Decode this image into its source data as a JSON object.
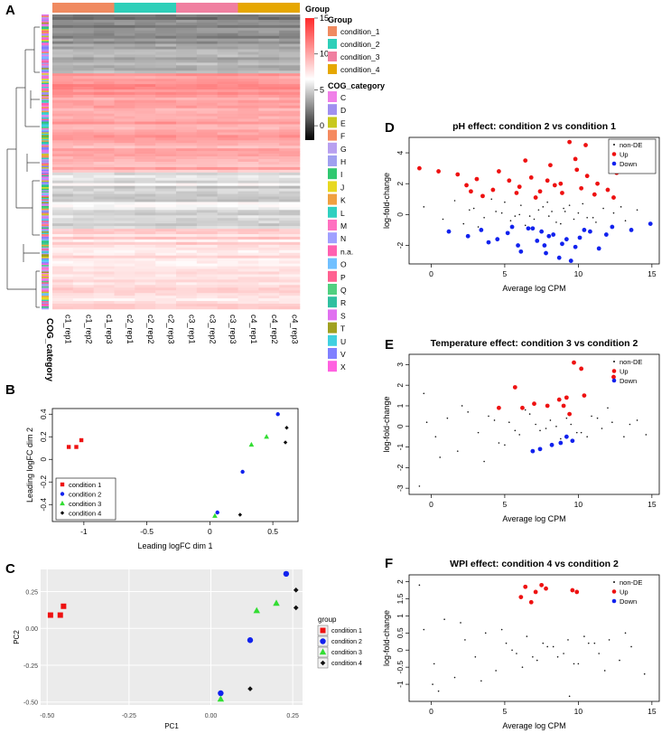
{
  "panels": {
    "a": "A",
    "b": "B",
    "c": "C",
    "d": "D",
    "e": "E",
    "f": "F"
  },
  "colors": {
    "c1": "#f08a60",
    "c2": "#2ecfb9",
    "c3": "#f07fa0",
    "c4": "#e6a700",
    "up": "#ee1111",
    "down": "#1122ee",
    "nonde": "#111111"
  },
  "heatmap": {
    "sample_labels": [
      "c1_rep1",
      "c1_rep2",
      "c1_rep3",
      "c2_rep1",
      "c2_rep2",
      "c2_rep3",
      "c3_rep1",
      "c3_rep2",
      "c3_rep3",
      "c4_rep1",
      "c4_rep2",
      "c4_rep3"
    ],
    "cog_axis_label": "COG_category",
    "scale_ticks": [
      "15",
      "10",
      "5",
      "0"
    ],
    "legend_group_title": "Group",
    "legend_group_title_2": "Group",
    "group_labels": [
      "condition_1",
      "condition_2",
      "condition_3",
      "condition_4"
    ],
    "legend_cog_title": "COG_category",
    "cog_categories": [
      "C",
      "D",
      "E",
      "F",
      "G",
      "H",
      "I",
      "J",
      "K",
      "L",
      "M",
      "N",
      "n.a.",
      "O",
      "P",
      "Q",
      "R",
      "S",
      "T",
      "U",
      "V",
      "X"
    ],
    "cog_colors": [
      "#f080e8",
      "#a090f0",
      "#c8c81e",
      "#f58a60",
      "#b8a0f0",
      "#a0a0f0",
      "#30c870",
      "#e8d820",
      "#f0a040",
      "#30d0c0",
      "#ff70c0",
      "#a0a0ff",
      "#ff60b0",
      "#70c0ff",
      "#ff6090",
      "#50d080",
      "#30c0a0",
      "#e070f0",
      "#a0a020",
      "#40d0e0",
      "#8080ff",
      "#ff60e0"
    ]
  },
  "chart_data": [
    {
      "id": "B",
      "type": "scatter",
      "title": "",
      "xlabel": "Leading logFC dim 1",
      "ylabel": "Leading logFC dim 2",
      "xlim": [
        -1.25,
        0.7
      ],
      "ylim": [
        -0.55,
        0.45
      ],
      "xticks": [
        -1.0,
        -0.5,
        0.0,
        0.5
      ],
      "yticks": [
        -0.4,
        -0.2,
        0.0,
        0.2,
        0.4
      ],
      "legend": [
        "condition 1",
        "condition 2",
        "condition 3",
        "condition 4"
      ],
      "series": [
        {
          "name": "condition 1",
          "x": [
            -1.12,
            -1.06,
            -1.02
          ],
          "y": [
            0.11,
            0.11,
            0.17
          ]
        },
        {
          "name": "condition 2",
          "x": [
            0.06,
            0.26,
            0.54
          ],
          "y": [
            -0.47,
            -0.11,
            0.4
          ]
        },
        {
          "name": "condition 3",
          "x": [
            0.04,
            0.33,
            0.45
          ],
          "y": [
            -0.5,
            0.13,
            0.2
          ]
        },
        {
          "name": "condition 4",
          "x": [
            0.24,
            0.6,
            0.61
          ],
          "y": [
            -0.49,
            0.15,
            0.28
          ]
        }
      ]
    },
    {
      "id": "C",
      "type": "scatter",
      "title": "",
      "xlabel": "PC1",
      "ylabel": "PC2",
      "xlim": [
        -0.52,
        0.28
      ],
      "ylim": [
        -0.52,
        0.4
      ],
      "xticks": [
        "-0.50",
        "-0.25",
        "0.00",
        "0.25"
      ],
      "xtick_values": [
        -0.5,
        -0.25,
        0.0,
        0.25
      ],
      "yticks": [
        "0.25",
        "0.00",
        "-0.25",
        "-0.50"
      ],
      "ytick_values": [
        0.25,
        0.0,
        -0.25,
        -0.5
      ],
      "legend_title": "group",
      "legend": [
        "condition 1",
        "condition 2",
        "condition 3",
        "condition 4"
      ],
      "series": [
        {
          "name": "condition 1",
          "x": [
            -0.49,
            -0.46,
            -0.45
          ],
          "y": [
            0.09,
            0.09,
            0.15
          ]
        },
        {
          "name": "condition 2",
          "x": [
            0.03,
            0.12,
            0.23
          ],
          "y": [
            -0.44,
            -0.08,
            0.37
          ]
        },
        {
          "name": "condition 3",
          "x": [
            0.03,
            0.14,
            0.2
          ],
          "y": [
            -0.48,
            0.12,
            0.17
          ]
        },
        {
          "name": "condition 4",
          "x": [
            0.12,
            0.26,
            0.26
          ],
          "y": [
            -0.41,
            0.14,
            0.26
          ]
        }
      ]
    },
    {
      "id": "D",
      "type": "scatter",
      "title": "pH effect: condition 2 vs condition 1",
      "xlabel": "Average log CPM",
      "ylabel": "log-fold-change",
      "xlim": [
        -1.5,
        15.5
      ],
      "ylim": [
        -3.2,
        5.0
      ],
      "xticks": [
        0,
        5,
        10,
        15
      ],
      "yticks": [
        -2,
        0,
        2,
        4
      ],
      "legend": [
        "non-DE",
        "Up",
        "Down"
      ],
      "series": [
        {
          "name": "Up",
          "x": [
            -0.8,
            0.5,
            1.8,
            2.4,
            3.1,
            4.2,
            5.3,
            6.0,
            6.8,
            7.4,
            8.1,
            8.8,
            9.4,
            9.8,
            10.2,
            10.6,
            11.3,
            12.0,
            12.6,
            3.5,
            5.8,
            7.1,
            8.4,
            9.9,
            11.1,
            4.6,
            6.4,
            8.9,
            10.5,
            2.7,
            12.4,
            7.9
          ],
          "y": [
            3.0,
            2.8,
            2.6,
            1.9,
            2.3,
            1.6,
            2.2,
            1.8,
            2.4,
            1.5,
            3.2,
            2.0,
            4.7,
            3.6,
            1.7,
            2.5,
            2.0,
            1.6,
            2.7,
            1.2,
            1.4,
            1.1,
            1.9,
            2.9,
            1.3,
            2.8,
            3.5,
            1.4,
            4.5,
            1.5,
            1.1,
            2.2
          ]
        },
        {
          "name": "Down",
          "x": [
            1.2,
            2.5,
            3.4,
            4.5,
            5.2,
            5.9,
            6.6,
            7.2,
            7.8,
            8.3,
            8.9,
            9.5,
            10.1,
            10.8,
            11.4,
            12.3,
            13.6,
            14.9,
            6.1,
            7.5,
            8.7,
            9.2,
            10.4,
            5.5,
            11.9,
            3.9,
            8.0,
            9.8,
            6.9,
            7.7
          ],
          "y": [
            -1.1,
            -1.4,
            -1.0,
            -1.6,
            -1.2,
            -2.0,
            -0.9,
            -1.7,
            -2.5,
            -1.3,
            -1.9,
            -3.0,
            -1.5,
            -1.1,
            -2.2,
            -0.8,
            -1.0,
            -0.6,
            -2.4,
            -1.1,
            -2.8,
            -1.6,
            -1.0,
            -0.8,
            -1.3,
            -1.8,
            -1.4,
            -2.1,
            -0.9,
            -2.0
          ]
        },
        {
          "name": "non-DE",
          "x": [
            -0.5,
            0.8,
            1.6,
            2.2,
            2.9,
            3.6,
            4.1,
            4.8,
            5.4,
            6.1,
            6.7,
            7.3,
            7.9,
            8.5,
            9.1,
            9.7,
            10.3,
            11.0,
            11.7,
            12.4,
            13.2,
            14.0,
            3.2,
            5.0,
            6.4,
            7.6,
            8.8,
            10.0,
            11.2,
            4.4,
            5.7,
            7.0,
            8.2,
            9.4,
            10.6,
            2.6,
            12.9,
            6.0,
            8.0,
            9.0
          ],
          "y": [
            0.5,
            -0.3,
            0.9,
            -0.6,
            0.4,
            -0.2,
            1.0,
            0.1,
            -0.4,
            0.6,
            -0.1,
            0.3,
            0.8,
            -0.5,
            0.2,
            -0.3,
            0.7,
            -0.2,
            0.4,
            0.1,
            -0.4,
            0.3,
            -0.8,
            0.8,
            -0.7,
            0.5,
            -0.6,
            0.1,
            -0.5,
            0.2,
            -0.1,
            -0.3,
            0.2,
            0.6,
            -0.2,
            0.3,
            0.5,
            0.0,
            -0.1,
            0.4
          ]
        }
      ]
    },
    {
      "id": "E",
      "type": "scatter",
      "title": "Temperature effect: condition 3 vs condition 2",
      "xlabel": "Average log CPM",
      "ylabel": "log-fold-change",
      "xlim": [
        -1.5,
        15.5
      ],
      "ylim": [
        -3.3,
        3.5
      ],
      "xticks": [
        0,
        5,
        10,
        15
      ],
      "yticks": [
        -3,
        -2,
        -1,
        0,
        1,
        2,
        3
      ],
      "legend": [
        "non-DE",
        "Up",
        "Down"
      ],
      "series": [
        {
          "name": "Up",
          "x": [
            4.6,
            5.7,
            6.2,
            7.9,
            8.7,
            9.2,
            9.4,
            9.7,
            10.2,
            10.4,
            12.4,
            7.0,
            9.0
          ],
          "y": [
            0.9,
            1.9,
            0.9,
            1.0,
            1.3,
            1.4,
            0.6,
            3.1,
            2.8,
            1.5,
            2.4,
            1.1,
            1.0
          ]
        },
        {
          "name": "Down",
          "x": [
            6.9,
            7.4,
            8.2,
            9.2,
            9.6,
            8.8
          ],
          "y": [
            -1.2,
            -1.1,
            -0.9,
            -0.5,
            -0.7,
            -0.8
          ]
        },
        {
          "name": "non-DE",
          "x": [
            -0.5,
            0.3,
            1.1,
            1.8,
            2.5,
            3.2,
            3.9,
            4.6,
            5.3,
            6.0,
            6.7,
            7.4,
            8.1,
            8.8,
            9.5,
            10.2,
            10.9,
            11.6,
            12.3,
            13.1,
            14.0,
            -0.8,
            0.6,
            2.1,
            3.6,
            5.0,
            6.4,
            7.8,
            9.2,
            10.6,
            12.0,
            13.5,
            4.3,
            5.7,
            7.1,
            8.5,
            9.9,
            11.3,
            -0.3,
            14.6
          ],
          "y": [
            1.6,
            -0.5,
            0.4,
            -1.2,
            0.7,
            -0.3,
            0.5,
            -0.8,
            0.2,
            -0.4,
            0.6,
            -0.2,
            0.3,
            -0.6,
            0.1,
            -0.3,
            0.5,
            -0.1,
            0.2,
            -0.5,
            0.3,
            -2.9,
            -1.5,
            1.0,
            -1.7,
            -0.9,
            0.8,
            -0.1,
            0.4,
            -0.5,
            0.9,
            0.1,
            0.3,
            -0.2,
            0.1,
            0.0,
            -0.3,
            0.4,
            0.2,
            -0.4
          ]
        }
      ]
    },
    {
      "id": "F",
      "type": "scatter",
      "title": "WPI effect: condition 4 vs condition 2",
      "xlabel": "Average log CPM",
      "ylabel": "log-fold-change",
      "xlim": [
        -1.5,
        15.5
      ],
      "ylim": [
        -1.5,
        2.2
      ],
      "xticks": [
        0,
        5,
        10,
        15
      ],
      "yticks": [
        -1.0,
        -0.5,
        0.0,
        0.5,
        1.0,
        1.5,
        2.0
      ],
      "legend": [
        "non-DE",
        "Up",
        "Down"
      ],
      "series": [
        {
          "name": "Up",
          "x": [
            6.1,
            6.4,
            6.8,
            7.1,
            7.5,
            7.8,
            9.6,
            9.9
          ],
          "y": [
            1.55,
            1.85,
            1.4,
            1.7,
            1.9,
            1.8,
            1.75,
            1.7
          ]
        },
        {
          "name": "Down",
          "x": [],
          "y": []
        },
        {
          "name": "non-DE",
          "x": [
            -0.5,
            0.2,
            0.9,
            1.6,
            2.3,
            3.0,
            3.7,
            4.4,
            5.1,
            5.8,
            6.5,
            7.2,
            7.9,
            8.6,
            9.3,
            10.0,
            10.7,
            11.4,
            12.1,
            12.8,
            13.6,
            -0.8,
            0.5,
            2.0,
            3.4,
            4.8,
            6.2,
            7.6,
            9.0,
            10.4,
            11.8,
            13.2,
            5.5,
            6.9,
            8.3,
            9.7,
            11.1,
            14.5,
            0.1,
            9.4
          ],
          "y": [
            0.6,
            -0.4,
            0.9,
            -0.8,
            0.3,
            -0.2,
            0.5,
            -0.6,
            0.2,
            -0.1,
            0.4,
            -0.3,
            0.1,
            -0.2,
            0.3,
            -0.4,
            0.2,
            -0.1,
            0.3,
            -0.3,
            0.1,
            1.9,
            -1.2,
            0.8,
            -0.9,
            0.6,
            -0.5,
            0.2,
            -0.1,
            0.4,
            -0.6,
            0.5,
            0.0,
            -0.2,
            0.1,
            -0.4,
            0.2,
            -0.7,
            -1.0,
            -1.35
          ]
        }
      ]
    }
  ]
}
